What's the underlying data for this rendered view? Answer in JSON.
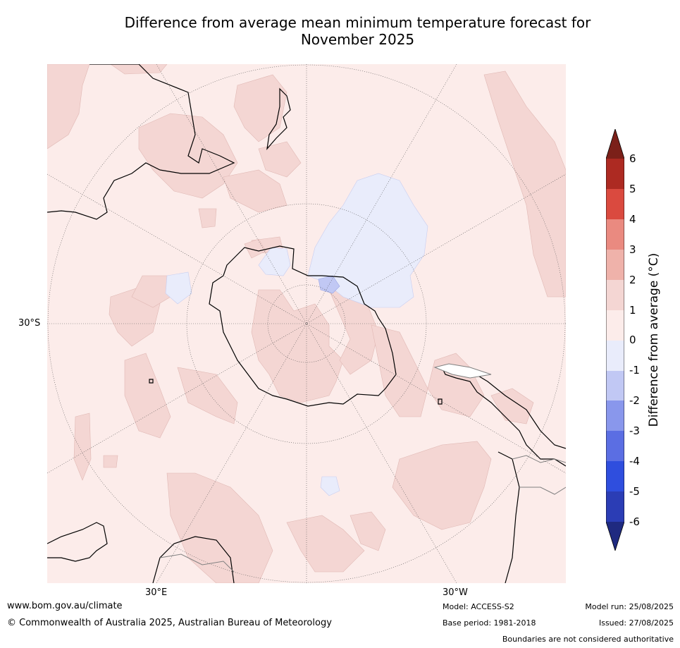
{
  "title_line1": "Difference from average mean minimum temperature forecast for",
  "title_line2": "November 2025",
  "lat_labels": [
    "30°S"
  ],
  "lon_labels": [
    "30°E",
    "30°W"
  ],
  "colorbar": {
    "label": "Difference from average (°C)",
    "ticks": [
      "6",
      "5",
      "4",
      "3",
      "2",
      "1",
      "0",
      "-1",
      "-2",
      "-3",
      "-4",
      "-5",
      "-6"
    ],
    "colors": {
      "gt6": "#7b2019",
      "5_6": "#ad2a22",
      "4_5": "#da4a3f",
      "3_4": "#ea8a80",
      "2_3": "#efb2aa",
      "1_2": "#f4d6d3",
      "0_1": "#fcecea",
      "m1_0": "#e9ecfb",
      "m2_m1": "#c1c8f4",
      "m3_m2": "#8997ec",
      "m4_m3": "#5b6ee3",
      "m5_m4": "#2f4ede",
      "m6_m5": "#2b3db5",
      "lt_m6": "#1f2a80"
    }
  },
  "footer": {
    "website": "www.bom.gov.au/climate",
    "copyright": "© Commonwealth of Australia 2025, Australian Bureau of Meteorology",
    "model": "Model: ACCESS-S2",
    "base_period": "Base period: 1981-2018",
    "model_run": "Model run: 25/08/2025",
    "issued": "Issued: 27/08/2025",
    "disclaimer": "Boundaries are not considered authoritative"
  }
}
